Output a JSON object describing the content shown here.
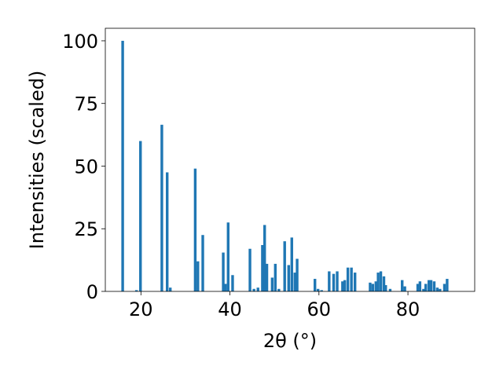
{
  "chart_data": {
    "type": "bar",
    "title": "",
    "xlabel": "2θ (°)",
    "ylabel": "Intensities (scaled)",
    "xlim": [
      12,
      95
    ],
    "ylim": [
      0,
      105
    ],
    "xticks": [
      20,
      40,
      60,
      80
    ],
    "yticks": [
      0,
      25,
      50,
      75,
      100
    ],
    "bar_width": 0.6,
    "color": "#1f77b4",
    "legend": "none",
    "grid": false,
    "x": [
      15.9,
      19.0,
      19.9,
      24.7,
      25.9,
      26.6,
      32.2,
      32.8,
      33.9,
      38.5,
      39.0,
      39.6,
      40.6,
      44.5,
      45.4,
      46.3,
      47.3,
      47.8,
      48.3,
      49.5,
      50.2,
      51.0,
      52.3,
      53.2,
      53.9,
      54.6,
      55.1,
      59.1,
      59.8,
      60.6,
      62.3,
      63.3,
      64.1,
      65.3,
      65.8,
      66.5,
      67.3,
      68.1,
      71.5,
      72.1,
      72.8,
      73.3,
      73.9,
      74.6,
      75.0,
      76.0,
      78.7,
      79.3,
      82.2,
      82.7,
      83.5,
      84.0,
      84.7,
      85.2,
      85.9,
      86.6,
      87.2,
      88.2,
      88.8
    ],
    "values": [
      100,
      0.5,
      60,
      66.5,
      47.5,
      1.5,
      49,
      12,
      22.5,
      15.5,
      3,
      27.5,
      6.5,
      17,
      1,
      1.5,
      18.5,
      26.5,
      11,
      5.5,
      11,
      1,
      20,
      10.5,
      21.5,
      7.5,
      13,
      5,
      1,
      0.5,
      8,
      7,
      8,
      4,
      4.5,
      9.5,
      9.5,
      7.5,
      3.5,
      3,
      4,
      7.5,
      8,
      6,
      2.5,
      1,
      4.5,
      2,
      3,
      4,
      1,
      3,
      4.5,
      4.5,
      4,
      1.5,
      1,
      3,
      5
    ]
  }
}
